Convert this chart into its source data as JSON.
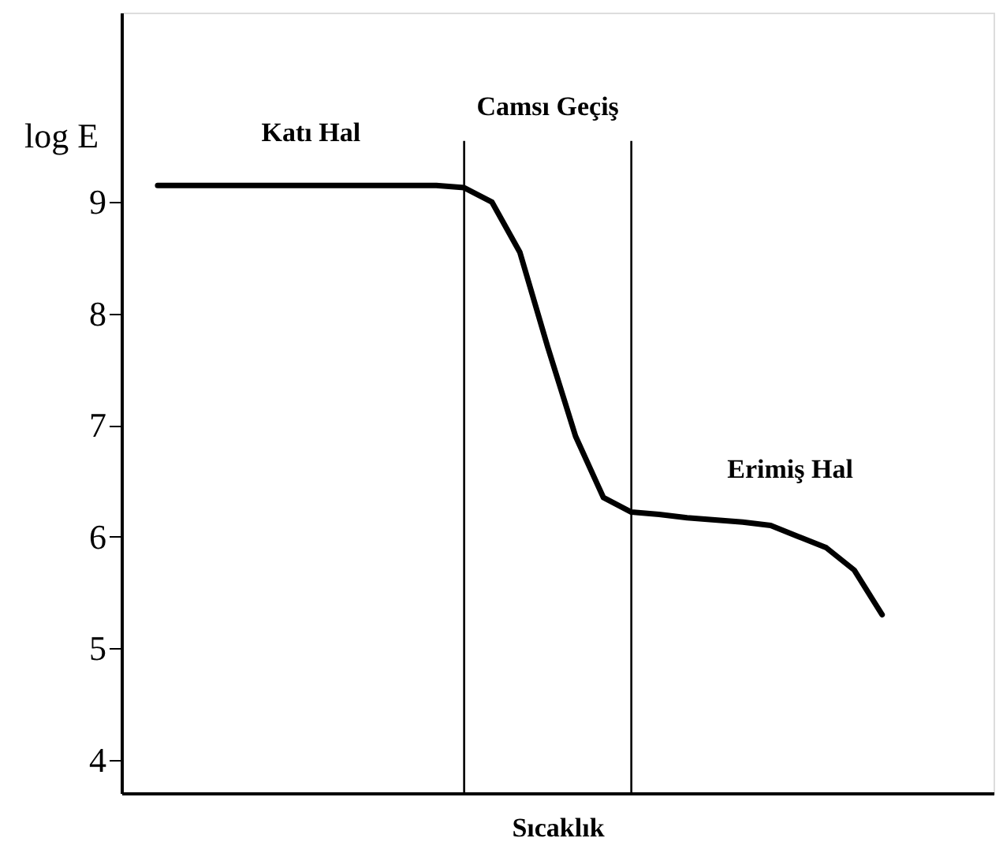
{
  "chart_data": {
    "type": "line",
    "ylabel": "log E",
    "xlabel": "Sıcaklık",
    "tick_labels": "y",
    "grid": false,
    "marker": "none",
    "line_style": "solid",
    "ylim": [
      3.7,
      10.7
    ],
    "yticks": [
      4,
      5,
      6,
      7,
      8,
      9
    ],
    "categories": [
      null,
      null,
      null,
      null,
      null,
      null,
      null,
      null,
      null,
      null,
      null,
      null,
      null,
      null,
      null,
      null,
      null,
      null,
      null,
      null,
      null,
      null,
      null,
      null,
      null,
      null,
      null
    ],
    "series": [
      {
        "color": "#000000",
        "values": [
          9.15,
          9.15,
          9.15,
          9.15,
          9.15,
          9.15,
          9.15,
          9.15,
          9.15,
          9.15,
          9.15,
          9.13,
          9.0,
          8.55,
          7.7,
          6.9,
          6.35,
          6.22,
          6.2,
          6.17,
          6.15,
          6.13,
          6.1,
          6.0,
          5.9,
          5.7,
          5.3
        ]
      }
    ],
    "annotations": [
      "Katı Hal",
      "Camsı Geçiş",
      "Erimiş Hal"
    ]
  }
}
